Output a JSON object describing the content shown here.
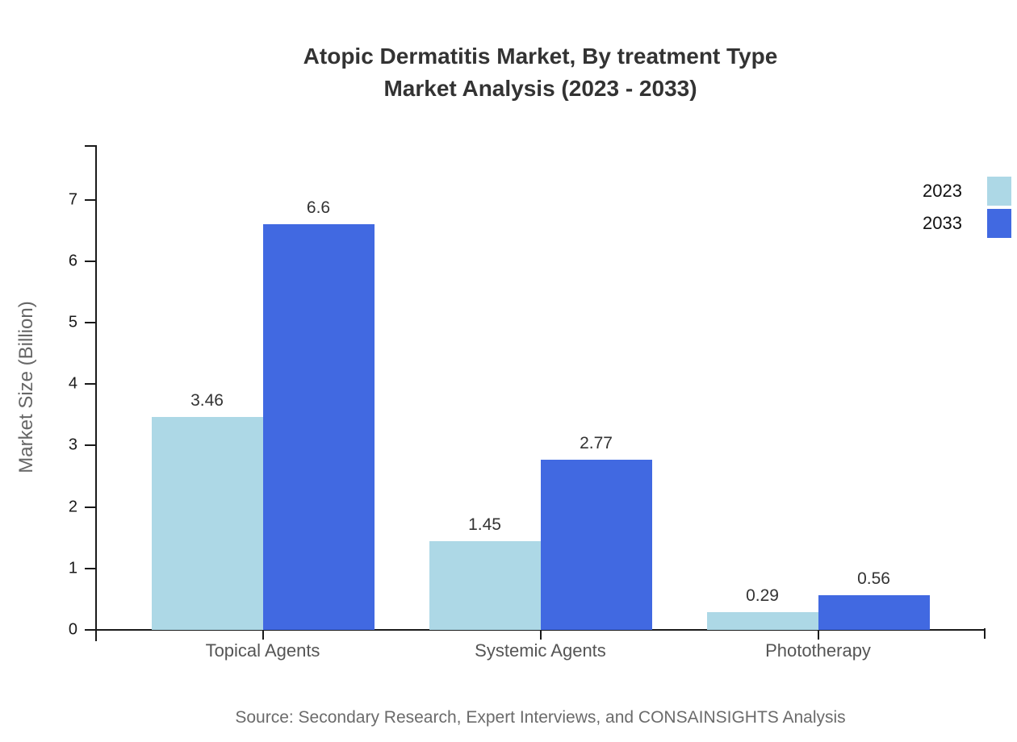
{
  "chart": {
    "title_line1": "Atopic Dermatitis Market, By treatment Type",
    "title_line2": "Market Analysis (2023 - 2033)",
    "source": "Source: Secondary Research, Expert Interviews, and CONSAINSIGHTS Analysis"
  },
  "chart_data": {
    "type": "bar",
    "title": "Atopic Dermatitis Market, By treatment Type — Market Analysis (2023 - 2033)",
    "categories": [
      "Topical Agents",
      "Systemic Agents",
      "Phototherapy"
    ],
    "series": [
      {
        "name": "2023",
        "color": "#add8e6",
        "values": [
          3.46,
          1.45,
          0.29
        ]
      },
      {
        "name": "2033",
        "color": "#4169e1",
        "values": [
          6.6,
          2.77,
          0.56
        ]
      }
    ],
    "xlabel": "",
    "ylabel": "Market Size (Billion)",
    "ylim": [
      0,
      7.89
    ],
    "yticks": [
      0,
      1,
      2,
      3,
      4,
      5,
      6,
      7
    ],
    "grid": false,
    "legend_position": "top-right",
    "value_labels": true,
    "axis_color": "#1a1a1a"
  }
}
